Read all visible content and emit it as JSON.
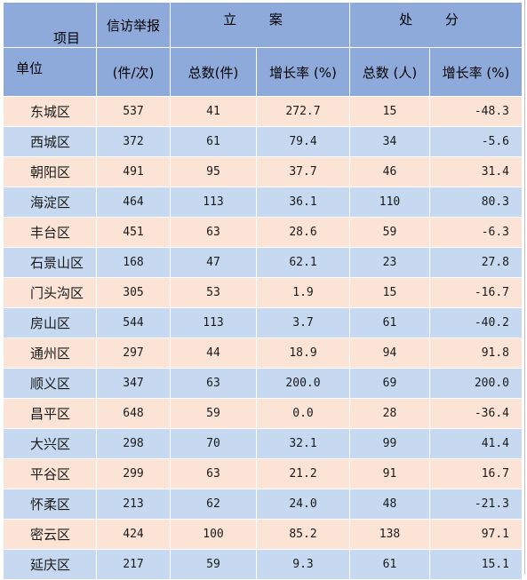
{
  "header": {
    "item_label": "项目",
    "unit_label": "单位",
    "reports_label": "信访举报",
    "reports_unit": "(件/次)",
    "filing_group": "立 案",
    "punish_group": "处 分",
    "filing_total": "总数(件)",
    "filing_growth": "增长率 (%)",
    "punish_total": "总数 (人)",
    "punish_growth": "增长率 (%)"
  },
  "rows": [
    {
      "district": "东城区",
      "reports": "537",
      "filing_total": "41",
      "filing_growth": "272.7",
      "punish_total": "15",
      "punish_growth": "-48.3"
    },
    {
      "district": "西城区",
      "reports": "372",
      "filing_total": "61",
      "filing_growth": "79.4",
      "punish_total": "34",
      "punish_growth": "-5.6"
    },
    {
      "district": "朝阳区",
      "reports": "491",
      "filing_total": "95",
      "filing_growth": "37.7",
      "punish_total": "46",
      "punish_growth": "31.4"
    },
    {
      "district": "海淀区",
      "reports": "464",
      "filing_total": "113",
      "filing_growth": "36.1",
      "punish_total": "110",
      "punish_growth": "80.3"
    },
    {
      "district": "丰台区",
      "reports": "451",
      "filing_total": "63",
      "filing_growth": "28.6",
      "punish_total": "59",
      "punish_growth": "-6.3"
    },
    {
      "district": "石景山区",
      "reports": "168",
      "filing_total": "47",
      "filing_growth": "62.1",
      "punish_total": "23",
      "punish_growth": "27.8"
    },
    {
      "district": "门头沟区",
      "reports": "305",
      "filing_total": "53",
      "filing_growth": "1.9",
      "punish_total": "15",
      "punish_growth": "-16.7"
    },
    {
      "district": "房山区",
      "reports": "544",
      "filing_total": "113",
      "filing_growth": "3.7",
      "punish_total": "61",
      "punish_growth": "-40.2"
    },
    {
      "district": "通州区",
      "reports": "297",
      "filing_total": "44",
      "filing_growth": "18.9",
      "punish_total": "94",
      "punish_growth": "91.8"
    },
    {
      "district": "顺义区",
      "reports": "347",
      "filing_total": "63",
      "filing_growth": "200.0",
      "punish_total": "69",
      "punish_growth": "200.0"
    },
    {
      "district": "昌平区",
      "reports": "648",
      "filing_total": "59",
      "filing_growth": "0.0",
      "punish_total": "28",
      "punish_growth": "-36.4"
    },
    {
      "district": "大兴区",
      "reports": "298",
      "filing_total": "70",
      "filing_growth": "32.1",
      "punish_total": "99",
      "punish_growth": "41.4"
    },
    {
      "district": "平谷区",
      "reports": "299",
      "filing_total": "63",
      "filing_growth": "21.2",
      "punish_total": "91",
      "punish_growth": "16.7"
    },
    {
      "district": "怀柔区",
      "reports": "213",
      "filing_total": "62",
      "filing_growth": "24.0",
      "punish_total": "48",
      "punish_growth": "-21.3"
    },
    {
      "district": "密云区",
      "reports": "424",
      "filing_total": "100",
      "filing_growth": "85.2",
      "punish_total": "138",
      "punish_growth": "97.1"
    },
    {
      "district": "延庆区",
      "reports": "217",
      "filing_total": "59",
      "filing_growth": "9.3",
      "punish_total": "61",
      "punish_growth": "15.1"
    }
  ],
  "colors": {
    "header_bg": "#8eaadb",
    "row_odd_bg": "#fbe4d5",
    "row_even_bg": "#c6d9f1"
  }
}
